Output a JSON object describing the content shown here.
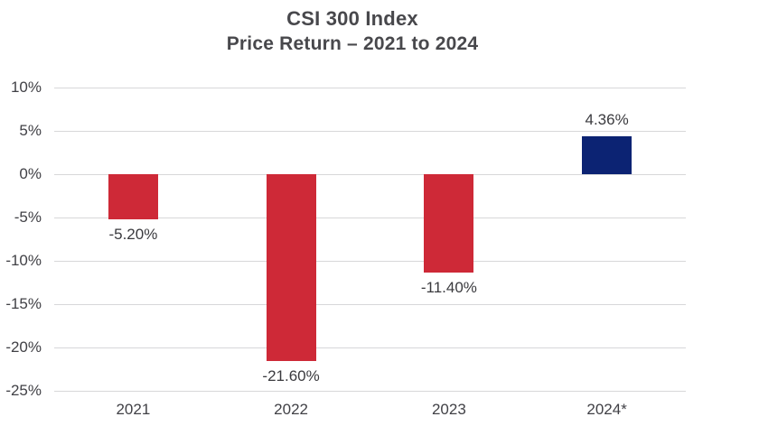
{
  "header": {
    "title": "CSI 300 Index",
    "subtitle": "Price Return – 2021 to 2024"
  },
  "chart_data": {
    "type": "bar",
    "title": "CSI 300 Index",
    "subtitle": "Price Return – 2021 to 2024",
    "categories": [
      "2021",
      "2022",
      "2023",
      "2024*"
    ],
    "values": [
      -5.2,
      -21.6,
      -11.4,
      4.36
    ],
    "value_labels": [
      "-5.20%",
      "-21.60%",
      "-11.40%",
      "4.36%"
    ],
    "bar_colors": [
      "#CE2937",
      "#CE2937",
      "#CE2937",
      "#0C2373"
    ],
    "ylim": [
      -25,
      10
    ],
    "yticks": [
      10,
      5,
      0,
      -5,
      -10,
      -15,
      -20,
      -25
    ],
    "ytick_labels": [
      "10%",
      "5%",
      "0%",
      "-5%",
      "-10%",
      "-15%",
      "-20%",
      "-25%"
    ],
    "xlabel": "",
    "ylabel": "",
    "grid": true,
    "legend": false,
    "colors": {
      "negative_bar": "#CE2937",
      "positive_bar": "#0C2373",
      "gridline": "#D7D7D9",
      "title_text": "#48484C",
      "label_text": "#414146",
      "background": "#FFFFFF"
    }
  }
}
